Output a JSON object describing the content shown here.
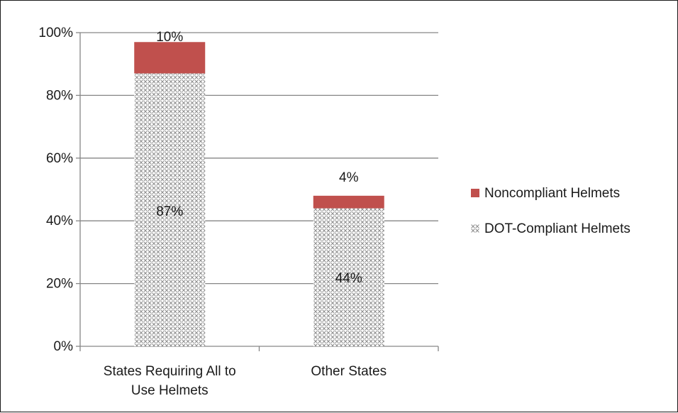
{
  "chart_data": {
    "type": "bar",
    "stacked": true,
    "categories": [
      [
        "States Requiring All to",
        "Use Helmets"
      ],
      [
        "Other States"
      ]
    ],
    "series": [
      {
        "name": "DOT-Compliant Helmets",
        "values": [
          87,
          44
        ],
        "labels": [
          "87%",
          "44%"
        ],
        "fill": "pattern-crosshatch-gray"
      },
      {
        "name": "Noncompliant Helmets",
        "values": [
          10,
          4
        ],
        "labels": [
          "10%",
          "4%"
        ],
        "color": "#c0504d"
      }
    ],
    "y_ticks": [
      "0%",
      "20%",
      "40%",
      "60%",
      "80%",
      "100%"
    ],
    "ylim": [
      0,
      100
    ],
    "grid": true,
    "legend": "right",
    "legend_order": [
      "Noncompliant Helmets",
      "DOT-Compliant Helmets"
    ]
  },
  "colors": {
    "noncompliant": "#c0504d",
    "compliant_pattern": "#8c8c8c",
    "grid": "#868686",
    "axis": "#868686"
  }
}
